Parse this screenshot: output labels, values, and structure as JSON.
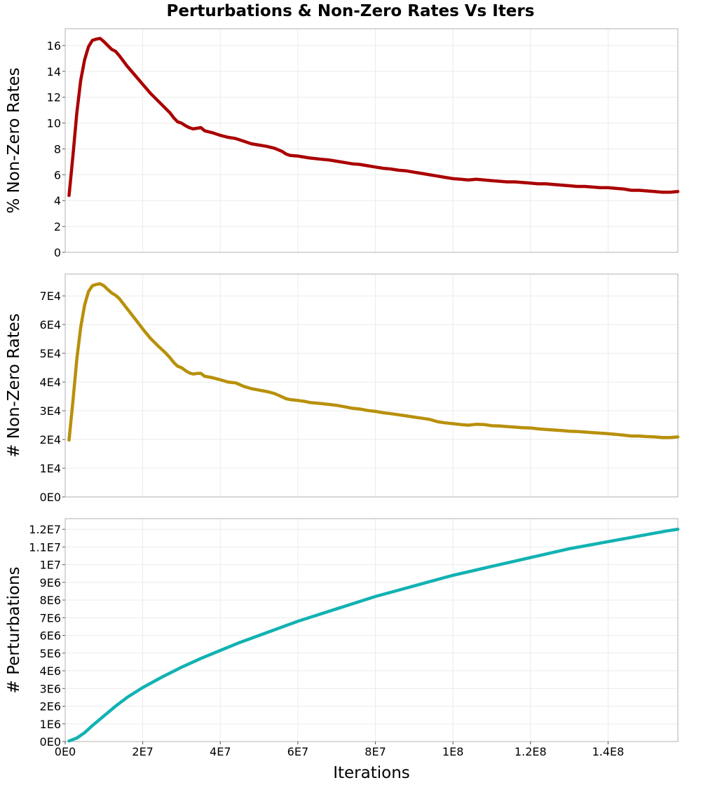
{
  "chart_data": {
    "type": "line",
    "title": "Perturbations & Non-Zero Rates Vs Iters",
    "xlabel": "Iterations",
    "xlim": [
      0,
      158000000
    ],
    "x_ticks": [
      {
        "value": 0,
        "label": "0E0"
      },
      {
        "value": 20000000,
        "label": "2E7"
      },
      {
        "value": 40000000,
        "label": "4E7"
      },
      {
        "value": 60000000,
        "label": "6E7"
      },
      {
        "value": 80000000,
        "label": "8E7"
      },
      {
        "value": 100000000,
        "label": "1E8"
      },
      {
        "value": 120000000,
        "label": "1.2E8"
      },
      {
        "value": 140000000,
        "label": "1.4E8"
      }
    ],
    "panels": [
      {
        "name": "pct-nonzero",
        "ylabel": "% Non-Zero Rates",
        "color": "#aa0000",
        "ylim": [
          0,
          17.3
        ],
        "y_ticks": [
          {
            "value": 0,
            "label": "0"
          },
          {
            "value": 2,
            "label": "2"
          },
          {
            "value": 4,
            "label": "4"
          },
          {
            "value": 6,
            "label": "6"
          },
          {
            "value": 8,
            "label": "8"
          },
          {
            "value": 10,
            "label": "10"
          },
          {
            "value": 12,
            "label": "12"
          },
          {
            "value": 14,
            "label": "14"
          },
          {
            "value": 16,
            "label": "16"
          }
        ],
        "x": [
          1000000,
          2000000,
          3000000,
          4000000,
          5000000,
          6000000,
          7000000,
          8000000,
          9000000,
          10000000,
          11000000,
          12000000,
          13000000,
          14000000,
          16000000,
          18000000,
          20000000,
          22000000,
          24000000,
          26000000,
          27000000,
          28000000,
          29000000,
          30000000,
          31000000,
          32000000,
          33000000,
          34000000,
          35000000,
          36000000,
          38000000,
          40000000,
          42000000,
          44000000,
          46000000,
          48000000,
          50000000,
          52000000,
          54000000,
          56000000,
          57000000,
          58000000,
          60000000,
          62000000,
          63000000,
          66000000,
          68000000,
          70000000,
          72000000,
          74000000,
          76000000,
          78000000,
          80000000,
          82000000,
          84000000,
          86000000,
          88000000,
          90000000,
          92000000,
          94000000,
          96000000,
          98000000,
          100000000,
          102000000,
          104000000,
          106000000,
          108000000,
          110000000,
          112000000,
          114000000,
          116000000,
          118000000,
          120000000,
          122000000,
          124000000,
          126000000,
          128000000,
          130000000,
          132000000,
          134000000,
          136000000,
          138000000,
          140000000,
          142000000,
          144000000,
          146000000,
          148000000,
          150000000,
          152000000,
          154000000,
          156000000,
          158000000
        ],
        "values": [
          4.4,
          7.5,
          10.8,
          13.3,
          14.9,
          15.9,
          16.4,
          16.5,
          16.55,
          16.3,
          16.0,
          15.7,
          15.55,
          15.2,
          14.4,
          13.7,
          13.0,
          12.3,
          11.7,
          11.1,
          10.8,
          10.4,
          10.1,
          10.0,
          9.8,
          9.65,
          9.55,
          9.6,
          9.65,
          9.4,
          9.25,
          9.05,
          8.9,
          8.8,
          8.6,
          8.4,
          8.3,
          8.2,
          8.05,
          7.8,
          7.6,
          7.5,
          7.45,
          7.35,
          7.3,
          7.2,
          7.15,
          7.05,
          6.95,
          6.85,
          6.8,
          6.7,
          6.6,
          6.5,
          6.45,
          6.35,
          6.3,
          6.2,
          6.1,
          6.0,
          5.9,
          5.8,
          5.7,
          5.65,
          5.6,
          5.65,
          5.6,
          5.55,
          5.5,
          5.45,
          5.45,
          5.4,
          5.35,
          5.3,
          5.3,
          5.25,
          5.2,
          5.15,
          5.1,
          5.1,
          5.05,
          5.0,
          5.0,
          4.95,
          4.9,
          4.8,
          4.8,
          4.75,
          4.7,
          4.65,
          4.65,
          4.7
        ]
      },
      {
        "name": "count-nonzero",
        "ylabel": "# Non-Zero Rates",
        "color": "#b8900a",
        "ylim": [
          0,
          77600
        ],
        "y_ticks": [
          {
            "value": 0,
            "label": "0E0"
          },
          {
            "value": 10000,
            "label": "1E4"
          },
          {
            "value": 20000,
            "label": "2E4"
          },
          {
            "value": 30000,
            "label": "3E4"
          },
          {
            "value": 40000,
            "label": "4E4"
          },
          {
            "value": 50000,
            "label": "5E4"
          },
          {
            "value": 60000,
            "label": "6E4"
          },
          {
            "value": 70000,
            "label": "7E4"
          }
        ],
        "x": [
          1000000,
          2000000,
          3000000,
          4000000,
          5000000,
          6000000,
          7000000,
          8000000,
          9000000,
          10000000,
          11000000,
          12000000,
          13000000,
          14000000,
          16000000,
          18000000,
          20000000,
          22000000,
          24000000,
          26000000,
          27000000,
          28000000,
          29000000,
          30000000,
          31000000,
          32000000,
          33000000,
          34000000,
          35000000,
          36000000,
          38000000,
          40000000,
          42000000,
          44000000,
          46000000,
          48000000,
          50000000,
          52000000,
          54000000,
          56000000,
          57000000,
          58000000,
          60000000,
          62000000,
          63000000,
          66000000,
          68000000,
          70000000,
          72000000,
          74000000,
          76000000,
          78000000,
          80000000,
          82000000,
          84000000,
          86000000,
          88000000,
          90000000,
          92000000,
          94000000,
          96000000,
          98000000,
          100000000,
          102000000,
          104000000,
          106000000,
          108000000,
          110000000,
          112000000,
          114000000,
          116000000,
          118000000,
          120000000,
          122000000,
          124000000,
          126000000,
          128000000,
          130000000,
          132000000,
          134000000,
          136000000,
          138000000,
          140000000,
          142000000,
          144000000,
          146000000,
          148000000,
          150000000,
          152000000,
          154000000,
          156000000,
          158000000
        ],
        "values": [
          19800,
          33500,
          48000,
          59000,
          66800,
          71500,
          73500,
          74000,
          74200,
          73500,
          72200,
          71000,
          70200,
          69000,
          65500,
          62000,
          58500,
          55200,
          52500,
          50000,
          48500,
          46800,
          45500,
          45000,
          44000,
          43200,
          42800,
          43000,
          43000,
          42000,
          41500,
          40800,
          40000,
          39700,
          38500,
          37700,
          37200,
          36700,
          36000,
          34800,
          34200,
          33900,
          33600,
          33200,
          32900,
          32500,
          32200,
          31900,
          31400,
          30900,
          30600,
          30100,
          29800,
          29300,
          29000,
          28600,
          28200,
          27800,
          27400,
          27000,
          26200,
          25800,
          25500,
          25200,
          25000,
          25300,
          25200,
          24800,
          24700,
          24500,
          24300,
          24100,
          24000,
          23700,
          23500,
          23300,
          23100,
          22900,
          22800,
          22600,
          22400,
          22200,
          22000,
          21800,
          21500,
          21200,
          21200,
          21000,
          20900,
          20700,
          20700,
          20900
        ]
      },
      {
        "name": "perturbations",
        "ylabel": "# Perturbations",
        "color": "#12b2b2",
        "ylim": [
          0,
          12600000
        ],
        "y_ticks": [
          {
            "value": 0,
            "label": "0E0"
          },
          {
            "value": 1000000,
            "label": "1E6"
          },
          {
            "value": 2000000,
            "label": "2E6"
          },
          {
            "value": 3000000,
            "label": "3E6"
          },
          {
            "value": 4000000,
            "label": "4E6"
          },
          {
            "value": 5000000,
            "label": "5E6"
          },
          {
            "value": 6000000,
            "label": "6E6"
          },
          {
            "value": 7000000,
            "label": "7E6"
          },
          {
            "value": 8000000,
            "label": "8E6"
          },
          {
            "value": 9000000,
            "label": "9E6"
          },
          {
            "value": 10000000,
            "label": "1E7"
          },
          {
            "value": 11000000,
            "label": "1.1E7"
          },
          {
            "value": 12000000,
            "label": "1.2E7"
          }
        ],
        "x": [
          1000000,
          3000000,
          5000000,
          7000000,
          10000000,
          13000000,
          16000000,
          20000000,
          25000000,
          30000000,
          35000000,
          40000000,
          45000000,
          50000000,
          55000000,
          60000000,
          65000000,
          70000000,
          75000000,
          80000000,
          85000000,
          90000000,
          95000000,
          100000000,
          105000000,
          110000000,
          115000000,
          120000000,
          125000000,
          130000000,
          135000000,
          140000000,
          145000000,
          150000000,
          155000000,
          158000000
        ],
        "values": [
          30000,
          200000,
          500000,
          900000,
          1450000,
          2000000,
          2500000,
          3050000,
          3650000,
          4200000,
          4700000,
          5150000,
          5600000,
          6000000,
          6400000,
          6800000,
          7150000,
          7500000,
          7850000,
          8200000,
          8500000,
          8800000,
          9100000,
          9400000,
          9650000,
          9900000,
          10150000,
          10400000,
          10650000,
          10900000,
          11100000,
          11300000,
          11500000,
          11700000,
          11900000,
          12000000
        ]
      }
    ]
  }
}
